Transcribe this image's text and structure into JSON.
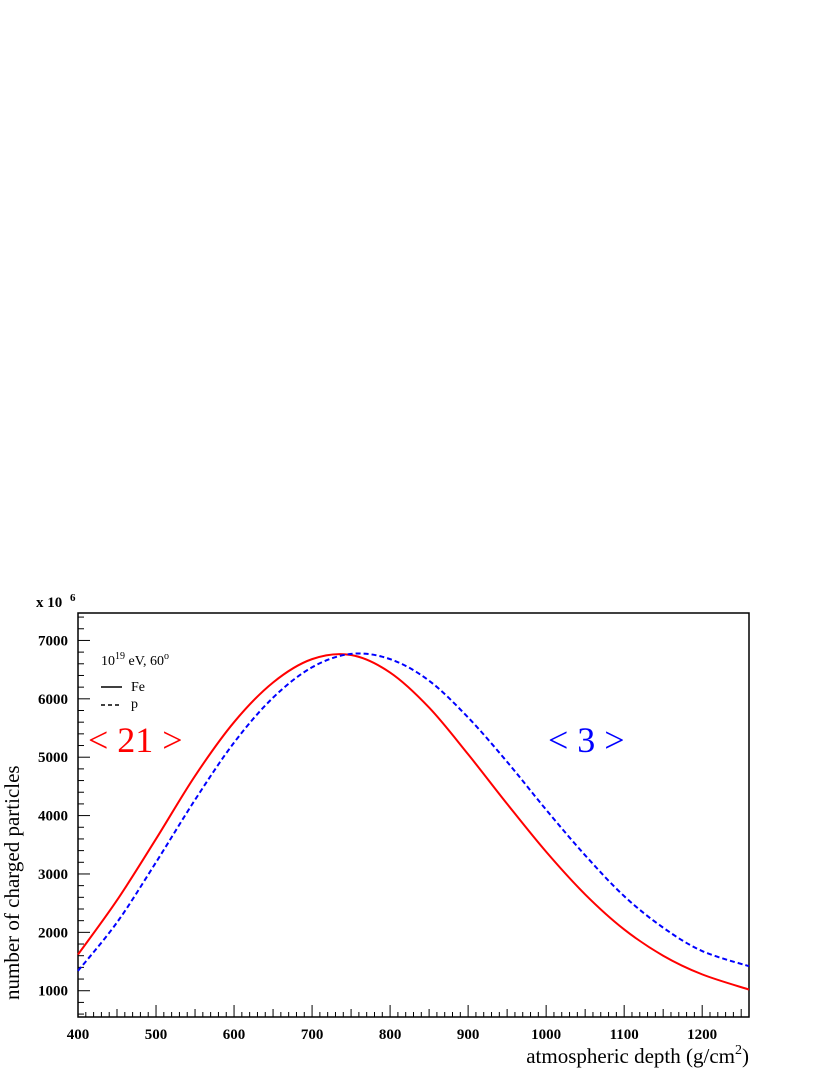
{
  "chart_data": {
    "type": "line",
    "xlabel": "atmospheric depth (g/cm",
    "xlabel_sup": "2",
    "xlabel_tail": ")",
    "ylabel": "number of charged particles",
    "y_multiplier_prefix": "x 10",
    "y_multiplier_exp": "6",
    "xlim": [
      400,
      1260
    ],
    "ylim": [
      550,
      7470
    ],
    "xticks": [
      400,
      500,
      600,
      700,
      800,
      900,
      1000,
      1100,
      1200
    ],
    "yticks": [
      1000,
      2000,
      3000,
      4000,
      5000,
      6000,
      7000
    ],
    "legend": {
      "title_base": "10",
      "title_exp": "19",
      "title_mid": " eV, 60",
      "title_deg": "o",
      "entries": [
        {
          "label": "Fe",
          "style": "solid"
        },
        {
          "label": "p",
          "style": "dashed"
        }
      ]
    },
    "annotations": [
      {
        "text": "< 21 >",
        "color": "#ff0000"
      },
      {
        "text": "< 3 >",
        "color": "#0000ff"
      }
    ],
    "series": [
      {
        "name": "Fe",
        "color": "#ff0000",
        "dash": "solid",
        "x": [
          400,
          450,
          500,
          550,
          600,
          650,
          700,
          750,
          800,
          850,
          900,
          950,
          1000,
          1050,
          1100,
          1150,
          1200,
          1260
        ],
        "y": [
          1620,
          2550,
          3600,
          4680,
          5600,
          6280,
          6680,
          6750,
          6450,
          5850,
          5050,
          4200,
          3380,
          2650,
          2050,
          1600,
          1280,
          1020
        ]
      },
      {
        "name": "p",
        "color": "#0000ff",
        "dash": "dashed",
        "x": [
          400,
          450,
          500,
          550,
          600,
          650,
          700,
          750,
          800,
          850,
          900,
          950,
          1000,
          1050,
          1100,
          1150,
          1200,
          1260
        ],
        "y": [
          1340,
          2170,
          3200,
          4270,
          5250,
          6020,
          6540,
          6770,
          6680,
          6310,
          5680,
          4920,
          4100,
          3320,
          2620,
          2080,
          1680,
          1420
        ]
      }
    ]
  }
}
